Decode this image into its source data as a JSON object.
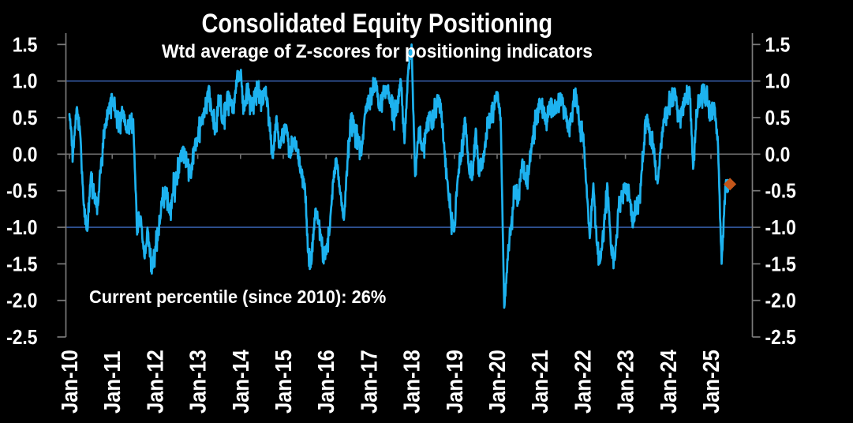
{
  "title": "Consolidated Equity Positioning",
  "subtitle": "Wtd average of Z-scores for positioning indicators",
  "annotation": "Current percentile (since 2010): 26%",
  "colors": {
    "background": "#000000",
    "line": "#1DB2EF",
    "ref_line": "#33589F",
    "zero_line": "#6F6F6F",
    "axis": "#7A7A7A",
    "text": "#FFFFFF",
    "marker": "#C4561A"
  },
  "chart_data": {
    "type": "line",
    "title": "Consolidated Equity Positioning",
    "subtitle": "Wtd average of Z-scores for positioning indicators",
    "annotation": "Current percentile (since 2010): 26%",
    "ylim": [
      -2.5,
      1.655
    ],
    "y_ticks": [
      1.5,
      1.0,
      0.5,
      0.0,
      -0.5,
      -1.0,
      -1.5,
      -2.0,
      -2.5
    ],
    "y_tick_labels": [
      "1.5",
      "1.0",
      "0.5",
      "0.0",
      "-0.5",
      "-1.0",
      "-1.5",
      "-2.0",
      "-2.5"
    ],
    "x_tick_labels": [
      "Jan-10",
      "Jan-11",
      "Jan-12",
      "Jan-13",
      "Jan-14",
      "Jan-15",
      "Jan-16",
      "Jan-17",
      "Jan-18",
      "Jan-19",
      "Jan-20",
      "Jan-21",
      "Jan-22",
      "Jan-23",
      "Jan-24",
      "Jan-25"
    ],
    "ref_lines": [
      1.0,
      -1.0
    ],
    "x_start": "2010-01",
    "x_end": "2025-06",
    "series": [
      {
        "name": "Consolidated equity positioning (weighted average of Z-scores)",
        "cadence": "monthly",
        "values": [
          0.55,
          0.0,
          0.62,
          0.3,
          -0.7,
          -1.05,
          -0.3,
          -0.55,
          -0.7,
          -0.05,
          0.35,
          0.6,
          0.78,
          0.55,
          0.35,
          0.6,
          0.3,
          0.5,
          0.3,
          -1.1,
          -0.85,
          -1.4,
          -1.05,
          -1.6,
          -1.35,
          -1.05,
          -0.6,
          -0.5,
          -0.8,
          -0.55,
          -0.3,
          -0.1,
          0.1,
          -0.1,
          -0.3,
          0.1,
          0.2,
          0.45,
          0.6,
          0.9,
          0.55,
          0.3,
          0.75,
          0.45,
          0.65,
          0.8,
          0.6,
          1.05,
          1.12,
          0.6,
          0.92,
          0.65,
          0.8,
          0.95,
          0.7,
          0.9,
          0.5,
          -0.05,
          0.5,
          0.1,
          0.3,
          0.35,
          -0.05,
          0.2,
          0.05,
          -0.25,
          -0.4,
          -1.35,
          -1.45,
          -0.75,
          -0.95,
          -1.3,
          -1.35,
          -1.05,
          -0.35,
          -0.1,
          -0.55,
          -0.9,
          -0.1,
          0.55,
          0.35,
          0.2,
          0.05,
          0.55,
          0.75,
          0.85,
          1.0,
          0.6,
          0.8,
          0.9,
          0.75,
          0.45,
          0.7,
          1.0,
          0.15,
          1.1,
          1.5,
          -0.3,
          0.35,
          0.05,
          0.3,
          0.55,
          0.4,
          0.7,
          0.75,
          0.15,
          -0.35,
          -0.85,
          -1.05,
          -0.3,
          0.0,
          0.5,
          -0.15,
          -0.35,
          0.35,
          -0.3,
          -0.1,
          0.25,
          0.55,
          0.65,
          0.85,
          0.5,
          -2.1,
          -1.45,
          -0.95,
          -0.45,
          -0.6,
          -0.1,
          -0.35,
          -0.2,
          0.25,
          0.55,
          0.7,
          0.6,
          0.45,
          0.75,
          0.55,
          0.7,
          0.8,
          0.6,
          0.35,
          0.55,
          0.9,
          0.4,
          0.3,
          -0.4,
          -1.15,
          -0.4,
          -1.25,
          -1.45,
          -0.95,
          -0.45,
          -1.3,
          -1.45,
          -0.75,
          -0.55,
          -0.45,
          -0.5,
          -1.0,
          -0.7,
          -0.6,
          0.0,
          0.5,
          0.25,
          0.05,
          -0.4,
          0.15,
          0.55,
          0.6,
          0.8,
          0.85,
          0.45,
          0.65,
          0.8,
          0.9,
          -0.2,
          0.55,
          0.75,
          0.9,
          0.7,
          0.6,
          0.65,
          0.1,
          -1.5,
          -0.45,
          -0.41
        ]
      }
    ],
    "last_point": {
      "date": "2025-06",
      "value": -0.41,
      "marker": "diamond"
    }
  }
}
